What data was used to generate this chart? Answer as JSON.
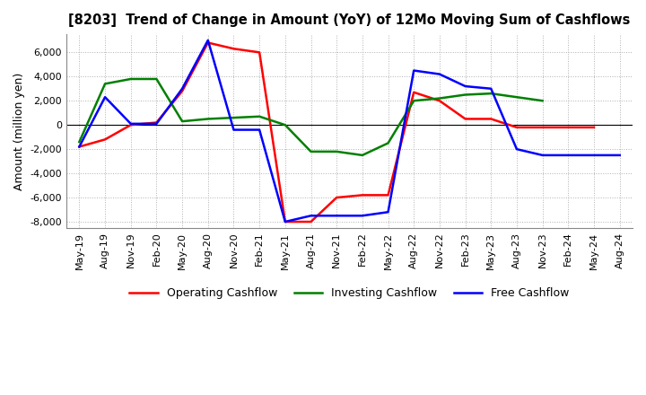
{
  "title": "[8203]  Trend of Change in Amount (YoY) of 12Mo Moving Sum of Cashflows",
  "ylabel": "Amount (million yen)",
  "ylim": [
    -8500,
    7500
  ],
  "yticks": [
    -8000,
    -6000,
    -4000,
    -2000,
    0,
    2000,
    4000,
    6000
  ],
  "background_color": "#ffffff",
  "grid_color": "#b0b0b0",
  "x_labels": [
    "May-19",
    "Aug-19",
    "Nov-19",
    "Feb-20",
    "May-20",
    "Aug-20",
    "Nov-20",
    "Feb-21",
    "May-21",
    "Aug-21",
    "Nov-21",
    "Feb-22",
    "May-22",
    "Aug-22",
    "Nov-22",
    "Feb-23",
    "May-23",
    "Aug-23",
    "Nov-23",
    "Feb-24",
    "May-24",
    "Aug-24"
  ],
  "operating": [
    -1800,
    -1200,
    0,
    200,
    2800,
    6800,
    6300,
    6000,
    -8000,
    -8000,
    -6000,
    -5800,
    -5800,
    2700,
    2000,
    500,
    500,
    -200,
    -200,
    -200,
    -200,
    null
  ],
  "investing": [
    -1400,
    3400,
    3800,
    3800,
    300,
    500,
    600,
    700,
    0,
    -2200,
    -2200,
    -2500,
    -1500,
    2000,
    2200,
    2500,
    2600,
    2300,
    2000,
    null,
    null,
    null
  ],
  "free": [
    -1800,
    2300,
    100,
    100,
    3000,
    7000,
    -400,
    -400,
    -8000,
    -7500,
    -7500,
    -7500,
    -7200,
    4500,
    4200,
    3200,
    3000,
    -2000,
    -2500,
    -2500,
    -2500,
    -2500
  ],
  "colors": {
    "operating": "#ff0000",
    "investing": "#008000",
    "free": "#0000ff"
  },
  "legend_labels": [
    "Operating Cashflow",
    "Investing Cashflow",
    "Free Cashflow"
  ]
}
